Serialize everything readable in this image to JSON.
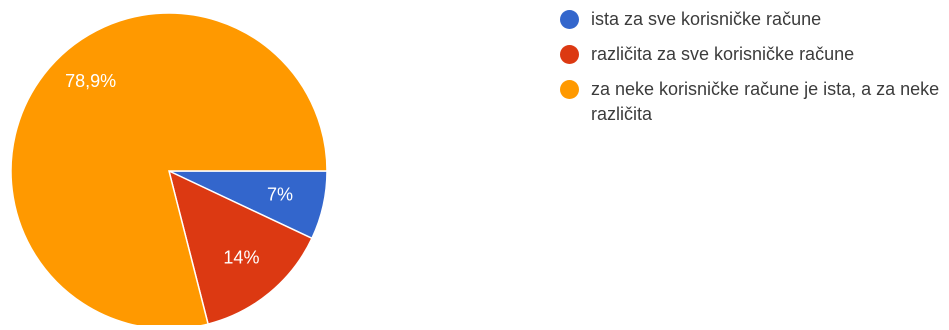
{
  "chart_data": {
    "type": "pie",
    "categories": [
      "ista za sve korisničke račune",
      "različita za sve korisničke račune",
      "za neke korisničke račune je ista, a za neke različita"
    ],
    "values": [
      7,
      14,
      78.9
    ],
    "data_labels": [
      "7%",
      "14%",
      "78,9%"
    ],
    "colors": [
      "#3366cc",
      "#dc3912",
      "#ff9900"
    ],
    "legend_position": "right",
    "start_angle": "3 o'clock",
    "direction": "clockwise"
  }
}
